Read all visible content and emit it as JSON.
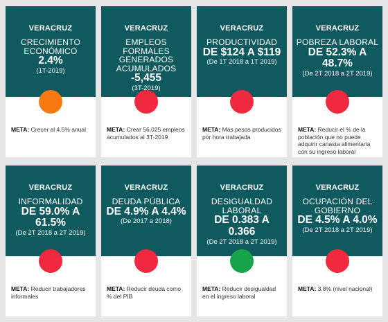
{
  "colors": {
    "header_bg": "#0f5a5e",
    "page_bg": "#e6e6e6",
    "status_red": "#f0293e",
    "status_orange": "#f57b10",
    "status_green": "#17a34a"
  },
  "cards": [
    {
      "region": "VERACRUZ",
      "label": "CRECIMIENTO ECONÓMICO",
      "value": "2.4%",
      "period": "(1T-2019)",
      "status": "orange",
      "meta_key": "META:",
      "meta_text": "Crecer al 4.5% anual"
    },
    {
      "region": "VERACRUZ",
      "label": "EMPLEOS FORMALES GENERADOS ACUMULADOS",
      "value": "-5,455",
      "period": "(3T-2019)",
      "status": "red",
      "meta_key": "META:",
      "meta_text": "Crear 56,025 empleos acumulados al 3T-2019"
    },
    {
      "region": "VERACRUZ",
      "label": "PRODUCTIVIDAD",
      "value": "DE $124 A $119",
      "period": "(De 1T 2018 a 1T 2019)",
      "status": "red",
      "meta_key": "META:",
      "meta_text": "Más pesos producidos por hora trabajada"
    },
    {
      "region": "VERACRUZ",
      "label": "POBREZA LABORAL",
      "value": "DE 52.3% A 48.7%",
      "period": "(De 2T 2018 a 2T 2019)",
      "status": "red",
      "meta_key": "META:",
      "meta_text": "Reducir el % de la población que no puede adquirir canasta alimentaria con su ingreso laboral"
    },
    {
      "region": "VERACRUZ",
      "label": "INFORMALIDAD",
      "value": "DE 59.0% A 61.5%",
      "period": "(De 2T 2018 a 2T 2019)",
      "status": "red",
      "meta_key": "META:",
      "meta_text": "Reducir trabajadores informales"
    },
    {
      "region": "VERACRUZ",
      "label": "DEUDA PÚBLICA",
      "value": "DE 4.9% A 4.4%",
      "period": "(De 2017 a 2018)",
      "status": "red",
      "meta_key": "META:",
      "meta_text": "Reducir deuda como % del PIB"
    },
    {
      "region": "VERACRUZ",
      "label": "DESIGUALDAD LABORAL",
      "value": "DE 0.383 A 0.366",
      "period": "(De 2T 2018 a 2T 2019)",
      "status": "green",
      "meta_key": "META:",
      "meta_text": "Reducir desigualdad en el ingreso laboral"
    },
    {
      "region": "VERACRUZ",
      "label": "OCUPACIÓN DEL GOBIERNO",
      "value": "DE 4.5% A 4.0%",
      "period": "(De 2T 2018 a 2T 2019)",
      "status": "red",
      "meta_key": "META:",
      "meta_text": "3.8% (nivel nacional)"
    }
  ]
}
